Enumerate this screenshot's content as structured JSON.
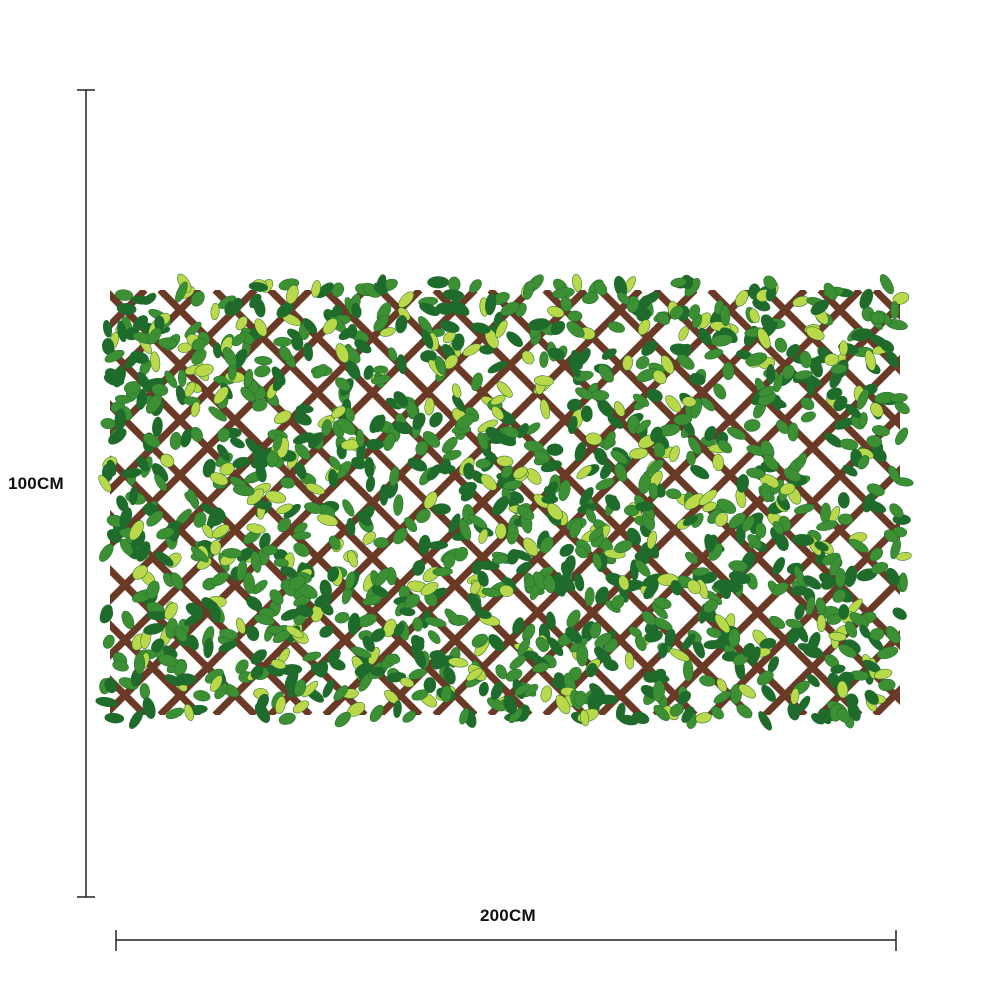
{
  "dimensions": {
    "height_label": "100CM",
    "width_label": "200CM"
  },
  "product": {
    "type": "expandable trellis with artificial leaves",
    "colors": {
      "lattice": "#6b3a26",
      "leaf_dark": "#1f6b2c",
      "leaf_mid": "#3d8f34",
      "leaf_light": "#b9d84a",
      "dimension_line": "#222222"
    }
  }
}
